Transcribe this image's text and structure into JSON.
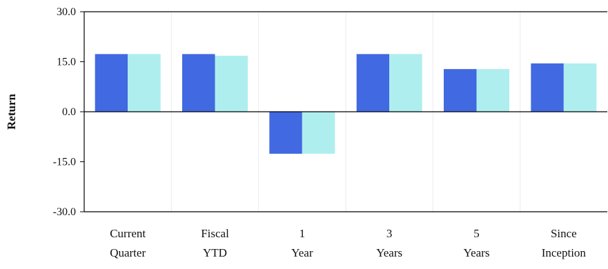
{
  "chart_data": {
    "type": "bar",
    "title": "",
    "xlabel": "",
    "ylabel": "Return",
    "ylim": [
      -30,
      30
    ],
    "yticks": [
      "30.0",
      "15.0",
      "0.0",
      "-15.0",
      "-30.0"
    ],
    "ytick_values": [
      30,
      15,
      0,
      -15,
      -30
    ],
    "categories": [
      [
        "Current",
        "Quarter"
      ],
      [
        "Fiscal",
        "YTD"
      ],
      [
        "1",
        "Year"
      ],
      [
        "3",
        "Years"
      ],
      [
        "5",
        "Years"
      ],
      [
        "Since",
        "Inception"
      ]
    ],
    "series": [
      {
        "values": [
          17.3,
          17.3,
          -12.6,
          17.3,
          12.8,
          14.5
        ],
        "color": "#4169E1"
      },
      {
        "values": [
          17.3,
          16.8,
          -12.6,
          17.3,
          12.8,
          14.5
        ],
        "color": "#AFEEEE"
      }
    ],
    "grid": true,
    "legend": "none"
  }
}
